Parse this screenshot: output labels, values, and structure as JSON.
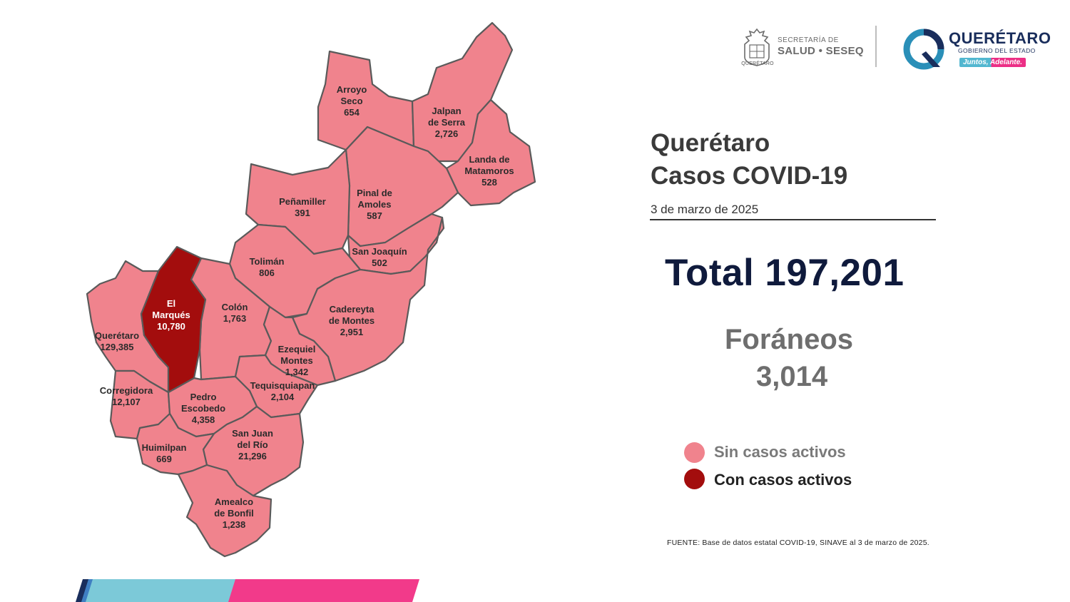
{
  "header": {
    "secretaria_label": "SECRETARÍA DE",
    "salud_label": "SALUD • SESEQ",
    "seal_caption": "QUERÉTARO",
    "gov_name": "QUERÉTARO",
    "gov_subtitle": "GOBIERNO DEL ESTADO",
    "slogan": "Juntos, Adelante."
  },
  "title_line1": "Querétaro",
  "title_line2": "Casos COVID-19",
  "date": "3 de marzo de 2025",
  "total_text": "Total 197,201",
  "foraneos_label": "Foráneos",
  "foraneos_value": "3,014",
  "legend": [
    {
      "label": "Sin casos activos",
      "color": "#f0838d"
    },
    {
      "label": "Con casos activos",
      "color": "#a30d0d"
    }
  ],
  "source_note": "FUENTE: Base de datos estatal COVID-19, SINAVE al 3 de marzo de 2025.",
  "colors": {
    "no_active": "#f0838d",
    "active": "#a30d0d",
    "border": "#5a5a5a",
    "bar_dark": "#1a2e5c",
    "bar_cyan": "#7cc9d8",
    "bar_pink": "#f23a8a"
  },
  "municipalities": [
    {
      "name": "Arroyo Seco",
      "label_lines": [
        "Arroyo",
        "Seco"
      ],
      "cases": "654",
      "active": false
    },
    {
      "name": "Jalpan de Serra",
      "label_lines": [
        "Jalpan",
        "de Serra"
      ],
      "cases": "2,726",
      "active": false
    },
    {
      "name": "Landa de Matamoros",
      "label_lines": [
        "Landa de",
        "Matamoros"
      ],
      "cases": "528",
      "active": false
    },
    {
      "name": "Pinal de Amoles",
      "label_lines": [
        "Pinal de",
        "Amoles"
      ],
      "cases": "587",
      "active": false
    },
    {
      "name": "Peñamiller",
      "label_lines": [
        "Peñamiller"
      ],
      "cases": "391",
      "active": false
    },
    {
      "name": "San Joaquín",
      "label_lines": [
        "San Joaquín"
      ],
      "cases": "502",
      "active": false
    },
    {
      "name": "Tolimán",
      "label_lines": [
        "Tolimán"
      ],
      "cases": "806",
      "active": false
    },
    {
      "name": "El Marqués",
      "label_lines": [
        "El",
        "Marqués"
      ],
      "cases": "10,780",
      "active": true
    },
    {
      "name": "Colón",
      "label_lines": [
        "Colón"
      ],
      "cases": "1,763",
      "active": false
    },
    {
      "name": "Cadereyta de Montes",
      "label_lines": [
        "Cadereyta",
        "de Montes"
      ],
      "cases": "2,951",
      "active": false
    },
    {
      "name": "Querétaro",
      "label_lines": [
        "Querétaro"
      ],
      "cases": "129,385",
      "active": false
    },
    {
      "name": "Ezequiel Montes",
      "label_lines": [
        "Ezequiel",
        "Montes"
      ],
      "cases": "1,342",
      "active": false
    },
    {
      "name": "Tequisquiapan",
      "label_lines": [
        "Tequisquiapan"
      ],
      "cases": "2,104",
      "active": false
    },
    {
      "name": "Corregidora",
      "label_lines": [
        "Corregidora"
      ],
      "cases": "12,107",
      "active": false
    },
    {
      "name": "Pedro Escobedo",
      "label_lines": [
        "Pedro",
        "Escobedo"
      ],
      "cases": "4,358",
      "active": false
    },
    {
      "name": "San Juan del Río",
      "label_lines": [
        "San Juan",
        "del Río"
      ],
      "cases": "21,296",
      "active": false
    },
    {
      "name": "Huimilpan",
      "label_lines": [
        "Huimilpan"
      ],
      "cases": "669",
      "active": false
    },
    {
      "name": "Amealco de Bonfil",
      "label_lines": [
        "Amealco",
        "de Bonfil"
      ],
      "cases": "1,238",
      "active": false
    }
  ]
}
